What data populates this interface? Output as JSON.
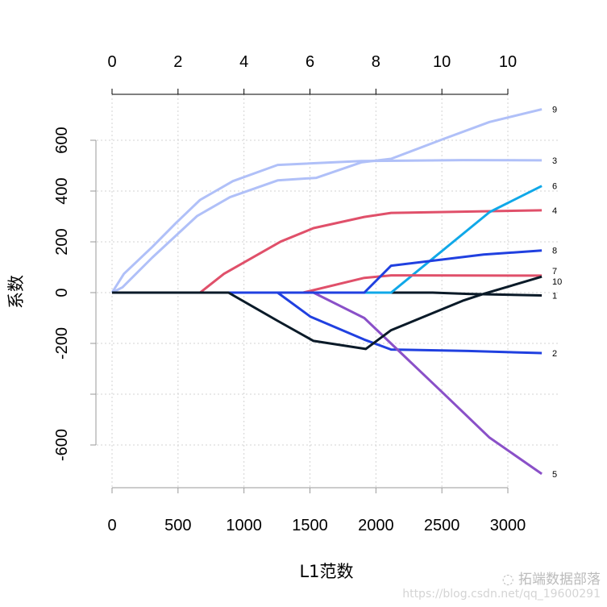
{
  "chart_data": {
    "type": "line",
    "xlabel": "L1范数",
    "ylabel": "系数",
    "xlim": [
      0,
      3300
    ],
    "ylim": [
      -750,
      750
    ],
    "grid": true,
    "x_ticks": [
      0,
      500,
      1000,
      1500,
      2000,
      2500,
      3000
    ],
    "x_tick_labels": [
      "0",
      "500",
      "1000",
      "1500",
      "2000",
      "2500",
      "3000"
    ],
    "top_ticks": [
      0,
      500,
      1000,
      1500,
      2000,
      2500,
      3000
    ],
    "top_tick_labels": [
      "0",
      "2",
      "4",
      "6",
      "8",
      "10",
      "10"
    ],
    "y_ticks": [
      -600,
      -400,
      -200,
      0,
      200,
      400,
      600
    ],
    "y_tick_labels": [
      "-600",
      "",
      "-200",
      "0",
      "200",
      "400",
      "600"
    ],
    "series": [
      {
        "name": "1",
        "color": "#0a1a28",
        "points": [
          [
            0,
            0
          ],
          [
            2430,
            0
          ],
          [
            2700,
            -5
          ],
          [
            3257,
            -11
          ]
        ]
      },
      {
        "name": "2",
        "color": "#2040e0",
        "points": [
          [
            0,
            0
          ],
          [
            1255,
            0
          ],
          [
            1504,
            -95
          ],
          [
            1912,
            -185
          ],
          [
            2115,
            -224
          ],
          [
            2700,
            -230
          ],
          [
            3257,
            -238
          ]
        ]
      },
      {
        "name": "3",
        "color": "#b0c0f8",
        "points": [
          [
            0,
            0
          ],
          [
            90,
            74
          ],
          [
            305,
            180
          ],
          [
            486,
            275
          ],
          [
            667,
            365
          ],
          [
            916,
            439
          ],
          [
            1255,
            503
          ],
          [
            1889,
            518
          ],
          [
            2658,
            522
          ],
          [
            3257,
            521
          ]
        ]
      },
      {
        "name": "4",
        "color": "#e0506a",
        "points": [
          [
            0,
            0
          ],
          [
            667,
            0
          ],
          [
            848,
            74
          ],
          [
            1278,
            201
          ],
          [
            1527,
            254
          ],
          [
            1912,
            298
          ],
          [
            2115,
            314
          ],
          [
            3257,
            324
          ]
        ]
      },
      {
        "name": "5",
        "color": "#8a50c8",
        "points": [
          [
            0,
            0
          ],
          [
            1527,
            0
          ],
          [
            1912,
            -100
          ],
          [
            2500,
            -391
          ],
          [
            2861,
            -571
          ],
          [
            3257,
            -714
          ]
        ]
      },
      {
        "name": "6",
        "color": "#10a8e8",
        "points": [
          [
            0,
            0
          ],
          [
            2115,
            0
          ],
          [
            2861,
            317
          ],
          [
            3257,
            420
          ]
        ]
      },
      {
        "name": "7",
        "color": "#e0506a",
        "points": [
          [
            0,
            0
          ],
          [
            1448,
            0
          ],
          [
            1912,
            58
          ],
          [
            2115,
            68
          ],
          [
            3257,
            67
          ]
        ]
      },
      {
        "name": "8",
        "color": "#2040e0",
        "points": [
          [
            0,
            0
          ],
          [
            1912,
            0
          ],
          [
            2115,
            106
          ],
          [
            2816,
            150
          ],
          [
            3257,
            166
          ]
        ]
      },
      {
        "name": "9",
        "color": "#b0c0f8",
        "points": [
          [
            0,
            0
          ],
          [
            79,
            21
          ],
          [
            305,
            138
          ],
          [
            645,
            302
          ],
          [
            894,
            376
          ],
          [
            1255,
            442
          ],
          [
            1549,
            452
          ],
          [
            1889,
            513
          ],
          [
            2115,
            527
          ],
          [
            2500,
            603
          ],
          [
            2861,
            672
          ],
          [
            3257,
            722
          ]
        ]
      },
      {
        "name": "10",
        "color": "#0a1a28",
        "points": [
          [
            0,
            0
          ],
          [
            882,
            0
          ],
          [
            1255,
            -111
          ],
          [
            1527,
            -190
          ],
          [
            1923,
            -222
          ],
          [
            2115,
            -148
          ],
          [
            2658,
            -32
          ],
          [
            2816,
            -5
          ],
          [
            3257,
            63
          ]
        ]
      }
    ]
  },
  "watermark": {
    "brand": "拓端数据部落",
    "url": "https://blog.csdn.net/qq_19600291"
  }
}
